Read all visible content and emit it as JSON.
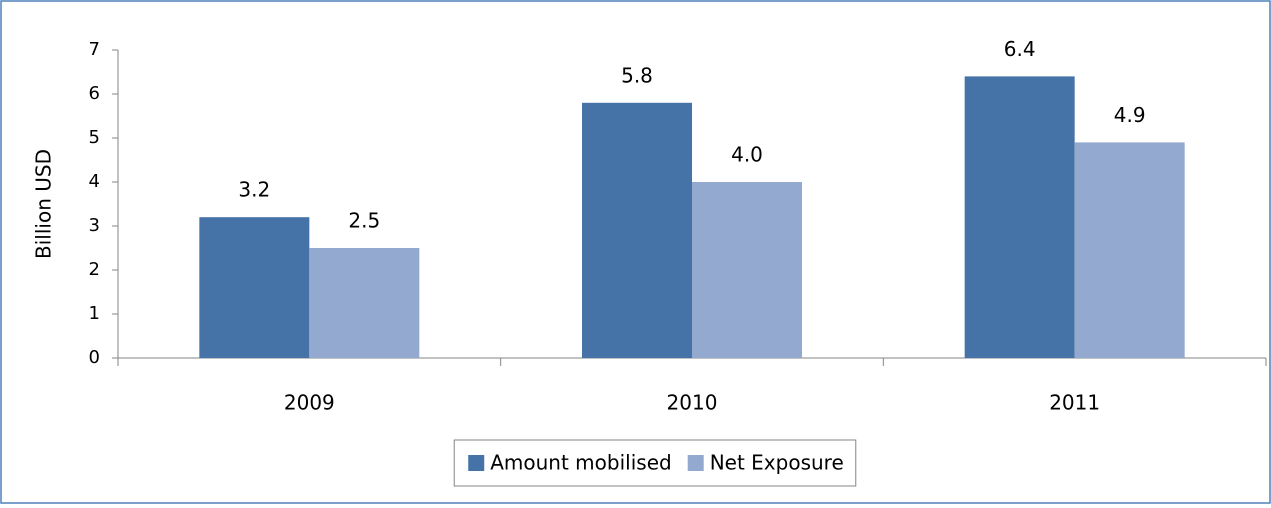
{
  "chart_data": {
    "type": "bar",
    "y_axis_label": "Billion USD",
    "categories": [
      "2009",
      "2010",
      "2011"
    ],
    "series": [
      {
        "name": "Amount mobilised",
        "color": "#4572a7",
        "values": [
          3.2,
          5.8,
          6.4
        ],
        "value_labels": [
          "3.2",
          "5.8",
          "6.4"
        ]
      },
      {
        "name": "Net Exposure",
        "color": "#93a9cf",
        "values": [
          2.5,
          4.0,
          4.9
        ],
        "value_labels": [
          "2.5",
          "4.0",
          "4.9"
        ]
      }
    ],
    "ylim": [
      0,
      7
    ],
    "yticks": [
      0,
      1,
      2,
      3,
      4,
      5,
      6,
      7
    ],
    "grid": false,
    "legend": "bottom"
  }
}
